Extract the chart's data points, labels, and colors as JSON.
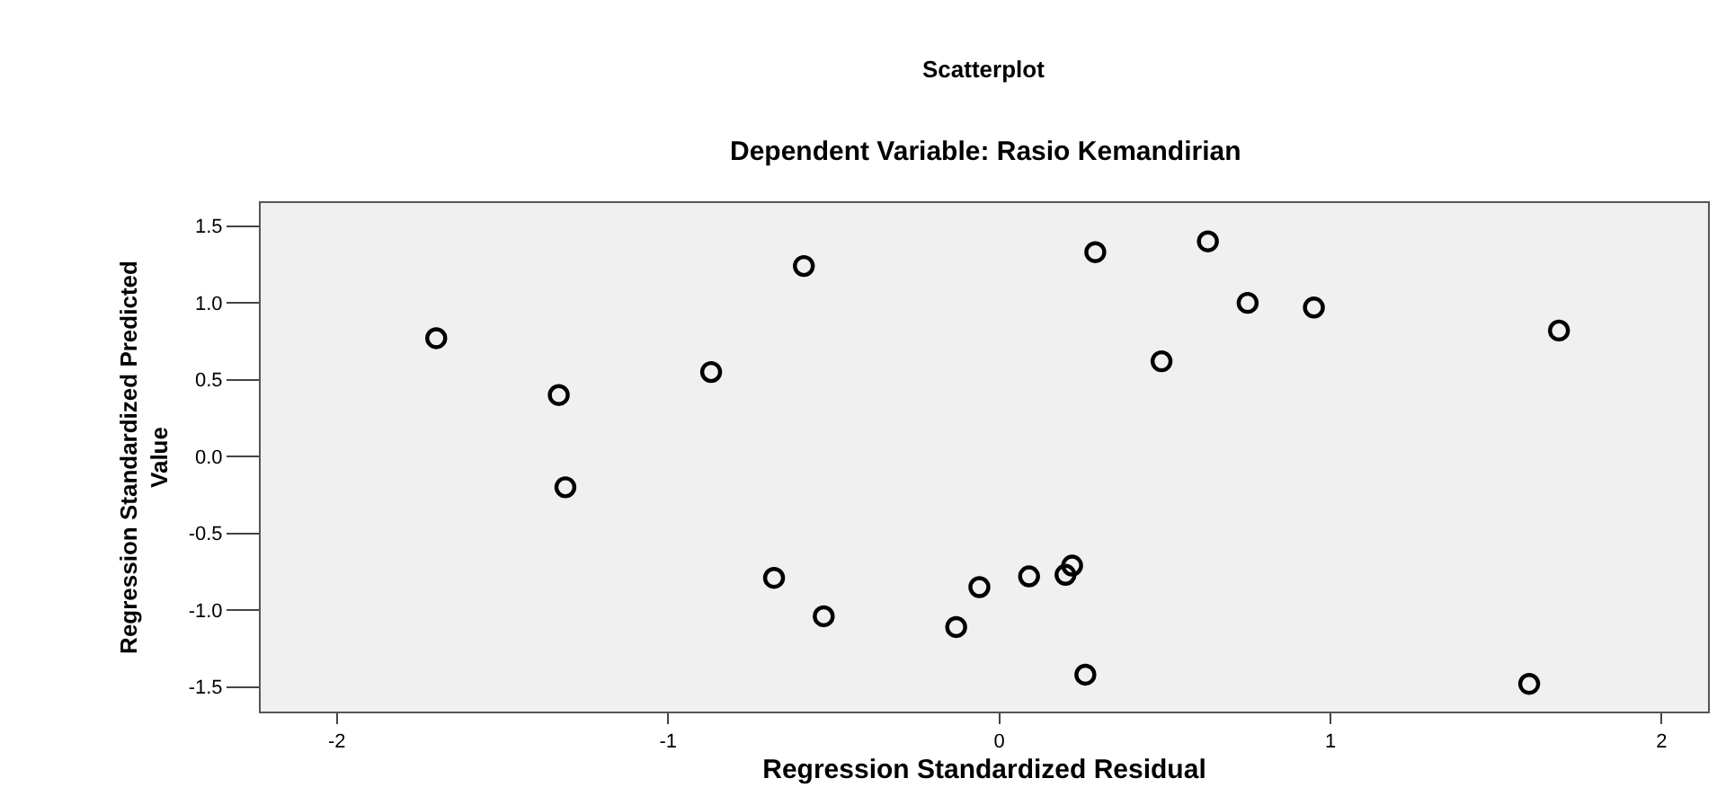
{
  "chart_data": {
    "type": "scatter",
    "title": "Scatterplot",
    "subtitle": "Dependent Variable: Rasio Kemandirian",
    "xlabel": "Regression Standardized Residual",
    "ylabel": "Regression Standardized Predicted\nValue",
    "x": [
      -1.7,
      -1.33,
      -1.31,
      -0.87,
      -0.59,
      -0.68,
      -0.53,
      -0.13,
      -0.06,
      0.29,
      0.63,
      0.75,
      0.95,
      1.69,
      0.49,
      0.09,
      0.2,
      0.22,
      0.26,
      1.6
    ],
    "series": [
      {
        "color": "#000000",
        "values": [
          0.77,
          0.4,
          -0.2,
          0.55,
          1.24,
          -0.79,
          -1.04,
          -1.11,
          -0.85,
          1.33,
          1.4,
          1.0,
          0.97,
          0.82,
          0.62,
          -0.78,
          -0.77,
          -0.71,
          -1.42,
          -1.48
        ]
      }
    ],
    "xlim": [
      -2.23,
      2.14
    ],
    "ylim": [
      -1.66,
      1.65
    ],
    "xticks": [
      -2,
      -1,
      0,
      1,
      2
    ],
    "yticks": [
      {
        "value": 1.5,
        "label": "1.5"
      },
      {
        "value": 1.0,
        "label": "1.0"
      },
      {
        "value": 0.5,
        "label": "0.5"
      },
      {
        "value": 0.0,
        "label": "0.0"
      },
      {
        "value": -0.5,
        "label": "-0.5"
      },
      {
        "value": -1.0,
        "label": "-1.0"
      },
      {
        "value": -1.5,
        "label": "-1.5"
      }
    ],
    "marker": "circle",
    "grid": false
  }
}
